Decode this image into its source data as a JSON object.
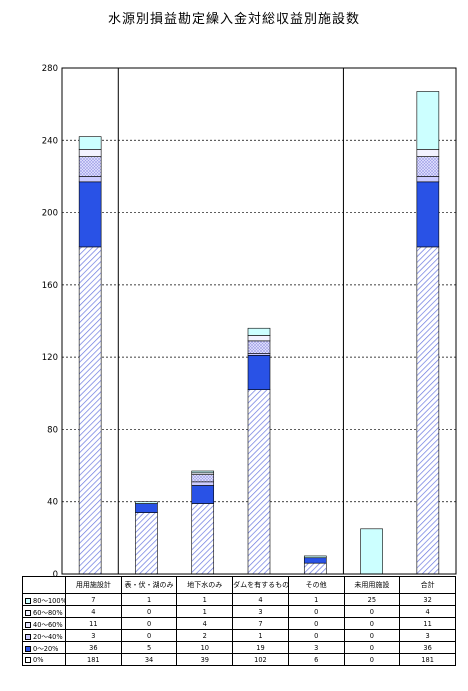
{
  "chart_data": {
    "type": "bar",
    "stacked": true,
    "title": "水源別損益勘定繰入金対総収益別施設数",
    "categories": [
      "用用施設計",
      "表・伏・湖のみ",
      "地下水のみ",
      "ダムを有するもの",
      "その他",
      "未用用施設",
      "合計"
    ],
    "series": [
      {
        "name": "0%",
        "values": [
          181,
          34,
          39,
          102,
          6,
          0,
          181
        ],
        "color": "#ffffff",
        "pattern": "hatch"
      },
      {
        "name": "0～20%",
        "values": [
          36,
          5,
          10,
          19,
          3,
          0,
          36
        ],
        "color": "#2952e6"
      },
      {
        "name": "20～40%",
        "values": [
          3,
          0,
          2,
          1,
          0,
          0,
          3
        ],
        "color": "#ccccff"
      },
      {
        "name": "40～60%",
        "values": [
          11,
          0,
          4,
          7,
          0,
          0,
          11
        ],
        "color": "#e6e6ff",
        "pattern": "crosshatch"
      },
      {
        "name": "60～80%",
        "values": [
          4,
          0,
          1,
          3,
          0,
          0,
          4
        ],
        "color": "#f2f2ff"
      },
      {
        "name": "80～100%",
        "values": [
          7,
          1,
          1,
          4,
          1,
          25,
          32
        ],
        "color": "#ccffff"
      }
    ],
    "ylim": [
      0,
      280
    ],
    "yticks": [
      0,
      40,
      80,
      120,
      160,
      200,
      240,
      280
    ],
    "xlabel": "",
    "ylabel": "",
    "grid": true
  },
  "table": {
    "rows": [
      {
        "label": "80～100%",
        "values": [
          "7",
          "1",
          "1",
          "4",
          "1",
          "25",
          "32"
        ]
      },
      {
        "label": "60～80%",
        "values": [
          "4",
          "0",
          "1",
          "3",
          "0",
          "0",
          "4"
        ]
      },
      {
        "label": "40～60%",
        "values": [
          "11",
          "0",
          "4",
          "7",
          "0",
          "0",
          "11"
        ]
      },
      {
        "label": "20～40%",
        "values": [
          "3",
          "0",
          "2",
          "1",
          "0",
          "0",
          "3"
        ]
      },
      {
        "label": "0～20%",
        "values": [
          "36",
          "5",
          "10",
          "19",
          "3",
          "0",
          "36"
        ]
      },
      {
        "label": "0%",
        "values": [
          "181",
          "34",
          "39",
          "102",
          "6",
          "0",
          "181"
        ]
      }
    ]
  }
}
